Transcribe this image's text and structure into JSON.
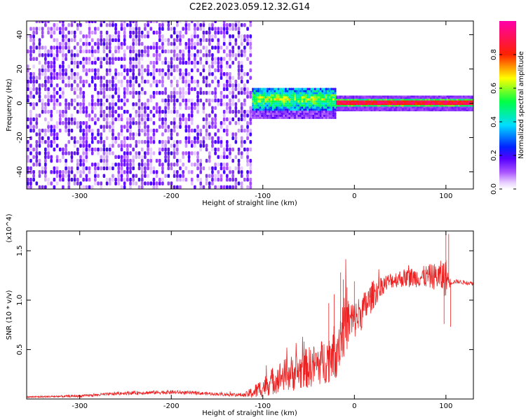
{
  "title": "C2E2.2023.059.12.32.G14",
  "chart_data": [
    {
      "type": "heatmap",
      "title": "C2E2.2023.059.12.32.G14",
      "xlabel": "Height of straight line (km)",
      "ylabel": "Frequency (Hz)",
      "xlim": [
        -358,
        130
      ],
      "ylim": [
        -50,
        48
      ],
      "xticks": [
        -300,
        -200,
        -100,
        0,
        100
      ],
      "yticks": [
        -40,
        -20,
        0,
        20,
        40
      ],
      "grid": false,
      "colorbar": {
        "label": "Normalized spectral amplitude",
        "range": [
          0,
          1
        ],
        "ticks": [
          "0.0",
          "0.2",
          "0.4",
          "0.6",
          "0.8"
        ],
        "tick_values": [
          0.0,
          0.2,
          0.4,
          0.6,
          0.8
        ],
        "colormap": "rainbow (white, violet, blue, cyan, green, yellow, red, magenta)"
      },
      "features": [
        {
          "region": "noise",
          "x_range": [
            -358,
            -112
          ],
          "freq_range": [
            -50,
            48
          ],
          "amplitude": "low (0.0-0.15), speckled"
        },
        {
          "region": "signal onset",
          "x_range": [
            -112,
            -20
          ],
          "center_freq": 2,
          "half_width_hz": 7,
          "amplitude": "0.3-0.6"
        },
        {
          "region": "signal",
          "x_range": [
            -20,
            130
          ],
          "center_freq": 0,
          "half_width_hz": 2,
          "amplitude": "0.8-1.0"
        }
      ]
    },
    {
      "type": "line",
      "xlabel": "Height of straight line (km)",
      "ylabel": "SNR (10 * v/v)",
      "y_multiplier": "(x10^4)",
      "xlim": [
        -358,
        130
      ],
      "ylim": [
        0,
        17000
      ],
      "xticks": [
        -300,
        -200,
        -100,
        0,
        100
      ],
      "yticks": [
        5000,
        10000,
        15000
      ],
      "ytick_labels": [
        "0.5",
        "1.0",
        "1.5"
      ],
      "color": "#ee2222",
      "grid": false,
      "series": [
        {
          "x": [
            -358,
            -300,
            -250,
            -200,
            -150,
            -120,
            -110,
            -100,
            -90,
            -80,
            -70,
            -60,
            -50,
            -40,
            -30,
            -20,
            -15,
            -10,
            -5,
            0,
            10,
            20,
            30,
            40,
            50,
            60,
            70,
            80,
            90,
            100,
            105,
            110,
            120,
            130
          ],
          "y": [
            200,
            300,
            600,
            700,
            500,
            400,
            700,
            1200,
            1800,
            2300,
            2600,
            2800,
            3200,
            3500,
            4000,
            5000,
            6500,
            7500,
            7800,
            8000,
            9000,
            10500,
            11500,
            12000,
            12200,
            12300,
            12300,
            12400,
            12400,
            12300,
            11800,
            11900,
            11800,
            11700
          ],
          "noise_amp": [
            80,
            120,
            180,
            200,
            150,
            200,
            700,
            1000,
            1400,
            1600,
            1800,
            2000,
            2100,
            2200,
            2400,
            3000,
            3200,
            3000,
            2600,
            2000,
            1800,
            1500,
            1000,
            800,
            900,
            1000,
            1000,
            1200,
            1400,
            2000,
            300,
            200,
            200,
            200
          ],
          "spikes": [
            [
              -15,
              12800
            ],
            [
              -12,
              12100
            ],
            [
              -8,
              11300
            ],
            [
              -22,
              10600
            ],
            [
              -28,
              9700
            ],
            [
              0,
              11900
            ],
            [
              10,
              10200
            ],
            [
              100,
              16900
            ],
            [
              103,
              16700
            ],
            [
              98,
              7600
            ],
            [
              105,
              7300
            ]
          ]
        }
      ]
    }
  ]
}
